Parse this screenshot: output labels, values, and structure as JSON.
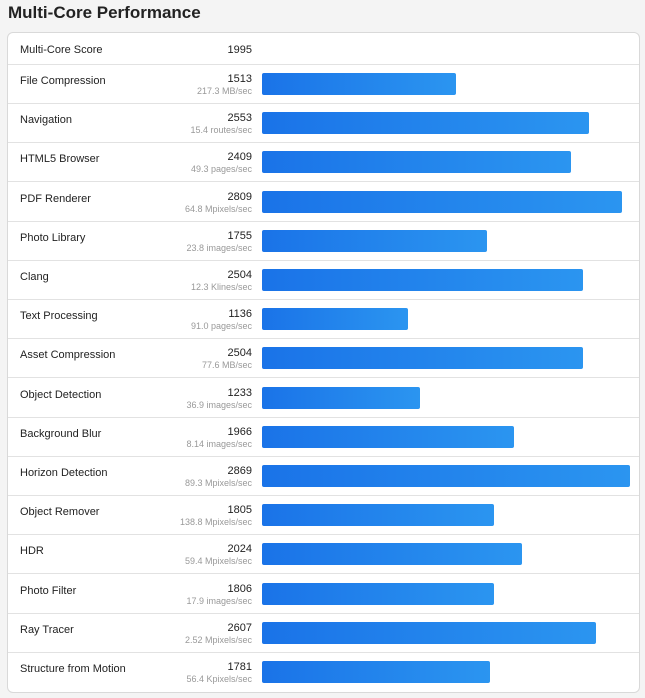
{
  "title": "Multi-Core Performance",
  "header": {
    "label": "Multi-Core Score",
    "score": "1995"
  },
  "colors": {
    "bar": "#1a73e8",
    "bar_end": "#2b95f0"
  },
  "chart_data": {
    "type": "bar",
    "orientation": "horizontal",
    "title": "Multi-Core Performance",
    "xlim": [
      0,
      2869
    ],
    "grid": false,
    "categories": [
      "File Compression",
      "Navigation",
      "HTML5 Browser",
      "PDF Renderer",
      "Photo Library",
      "Clang",
      "Text Processing",
      "Asset Compression",
      "Object Detection",
      "Background Blur",
      "Horizon Detection",
      "Object Remover",
      "HDR",
      "Photo Filter",
      "Ray Tracer",
      "Structure from Motion"
    ],
    "values": [
      1513,
      2553,
      2409,
      2809,
      1755,
      2504,
      1136,
      2504,
      1233,
      1966,
      2869,
      1805,
      2024,
      1806,
      2607,
      1781
    ],
    "rows": [
      {
        "name": "File Compression",
        "score": "1513",
        "unit": "217.3 MB/sec"
      },
      {
        "name": "Navigation",
        "score": "2553",
        "unit": "15.4 routes/sec"
      },
      {
        "name": "HTML5 Browser",
        "score": "2409",
        "unit": "49.3 pages/sec"
      },
      {
        "name": "PDF Renderer",
        "score": "2809",
        "unit": "64.8 Mpixels/sec"
      },
      {
        "name": "Photo Library",
        "score": "1755",
        "unit": "23.8 images/sec"
      },
      {
        "name": "Clang",
        "score": "2504",
        "unit": "12.3 Klines/sec"
      },
      {
        "name": "Text Processing",
        "score": "1136",
        "unit": "91.0 pages/sec"
      },
      {
        "name": "Asset Compression",
        "score": "2504",
        "unit": "77.6 MB/sec"
      },
      {
        "name": "Object Detection",
        "score": "1233",
        "unit": "36.9 images/sec"
      },
      {
        "name": "Background Blur",
        "score": "1966",
        "unit": "8.14 images/sec"
      },
      {
        "name": "Horizon Detection",
        "score": "2869",
        "unit": "89.3 Mpixels/sec"
      },
      {
        "name": "Object Remover",
        "score": "1805",
        "unit": "138.8 Mpixels/sec"
      },
      {
        "name": "HDR",
        "score": "2024",
        "unit": "59.4 Mpixels/sec"
      },
      {
        "name": "Photo Filter",
        "score": "1806",
        "unit": "17.9 images/sec"
      },
      {
        "name": "Ray Tracer",
        "score": "2607",
        "unit": "2.52 Mpixels/sec"
      },
      {
        "name": "Structure from Motion",
        "score": "1781",
        "unit": "56.4 Kpixels/sec"
      }
    ]
  }
}
